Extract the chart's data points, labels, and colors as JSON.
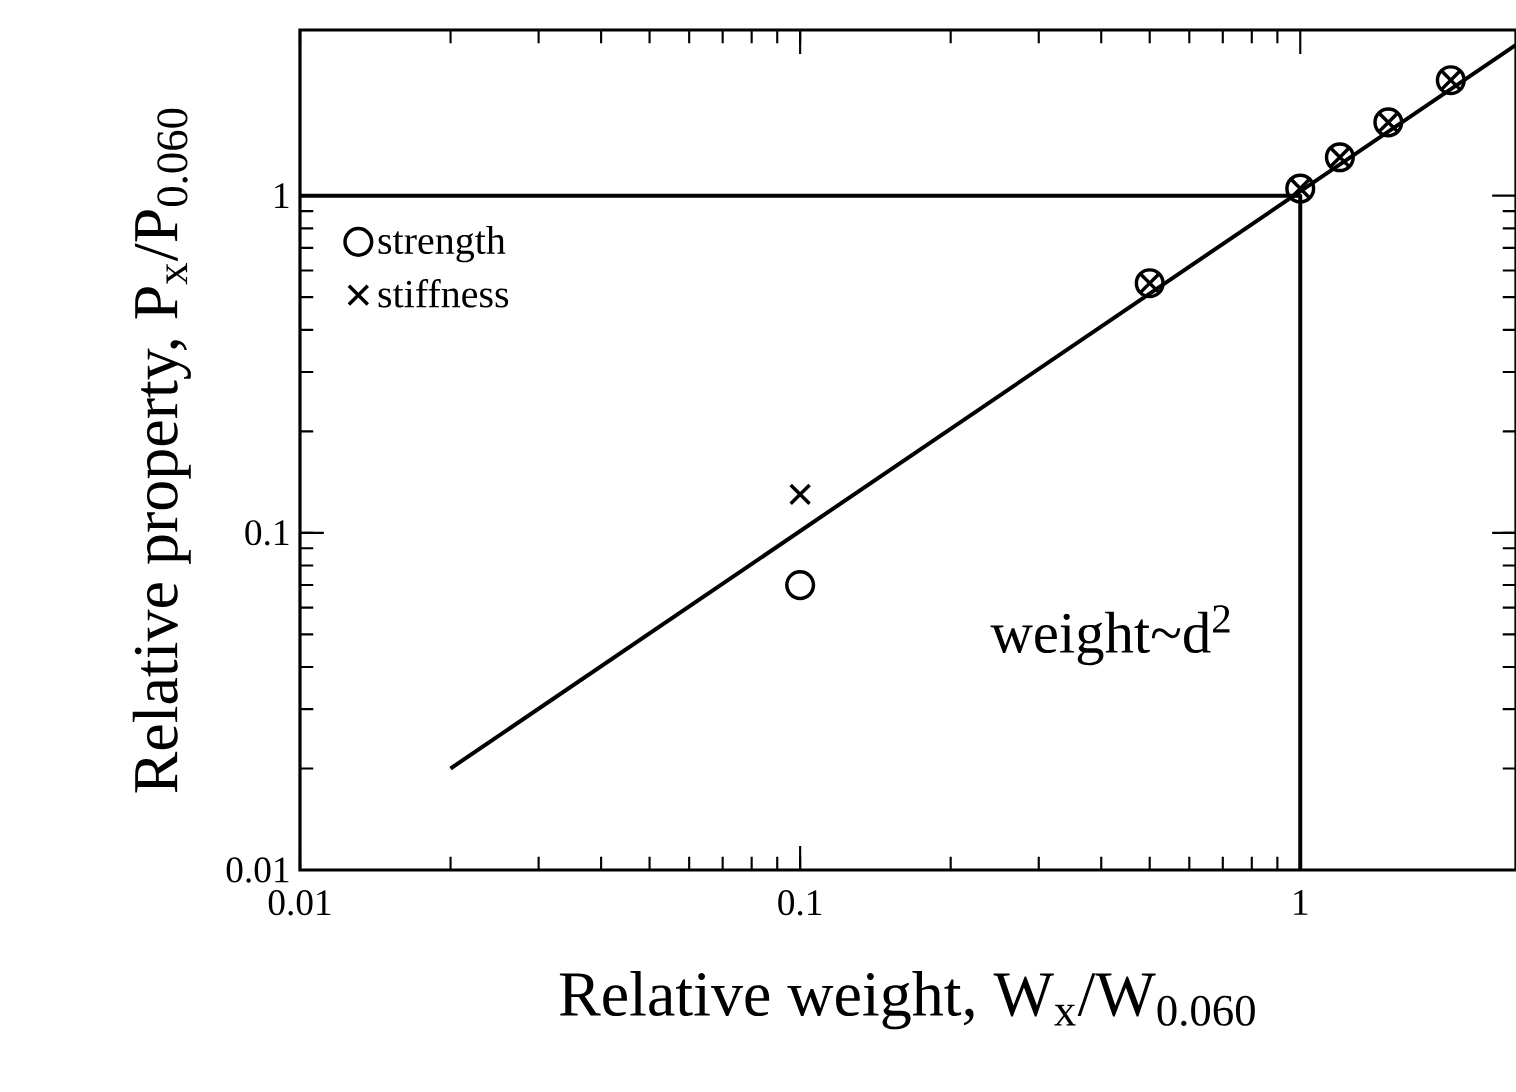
{
  "chart_data": {
    "type": "scatter",
    "xlabel": "Relative weight, W$_{x}$/W$_{0.060}$",
    "ylabel": "Relative property, P$_{x}$/P$_{0.060}$",
    "x": [
      0.1,
      0.5,
      1,
      1.2,
      1.5,
      2
    ],
    "series": [
      {
        "name": "strength",
        "color": "#000000",
        "marker": "circle",
        "values": [
          0.07,
          0.55,
          1.05,
          1.3,
          1.65,
          2.2
        ]
      },
      {
        "name": "stiffness",
        "color": "#000000",
        "marker": "cross",
        "values": [
          0.13,
          0.55,
          1.05,
          1.3,
          1.65,
          2.2
        ]
      },
      {
        "type": "line",
        "color": "#000000",
        "x": [
          0.02,
          2.7
        ],
        "values": [
          0.02,
          2.8
        ]
      },
      {
        "type": "line",
        "color": "#000000",
        "x": [
          0.01,
          1,
          1
        ],
        "values": [
          1,
          1,
          0.01
        ]
      }
    ],
    "annotations": [
      "weight~d$^{2}$"
    ],
    "log": "xy",
    "xlim": [
      0.01,
      2.7
    ],
    "ylim": [
      0.01,
      3.1
    ],
    "xticks": [
      0.01,
      0.1,
      1
    ],
    "yticks": [
      0.01,
      0.1,
      1
    ],
    "legend": "top left",
    "grid": false
  }
}
